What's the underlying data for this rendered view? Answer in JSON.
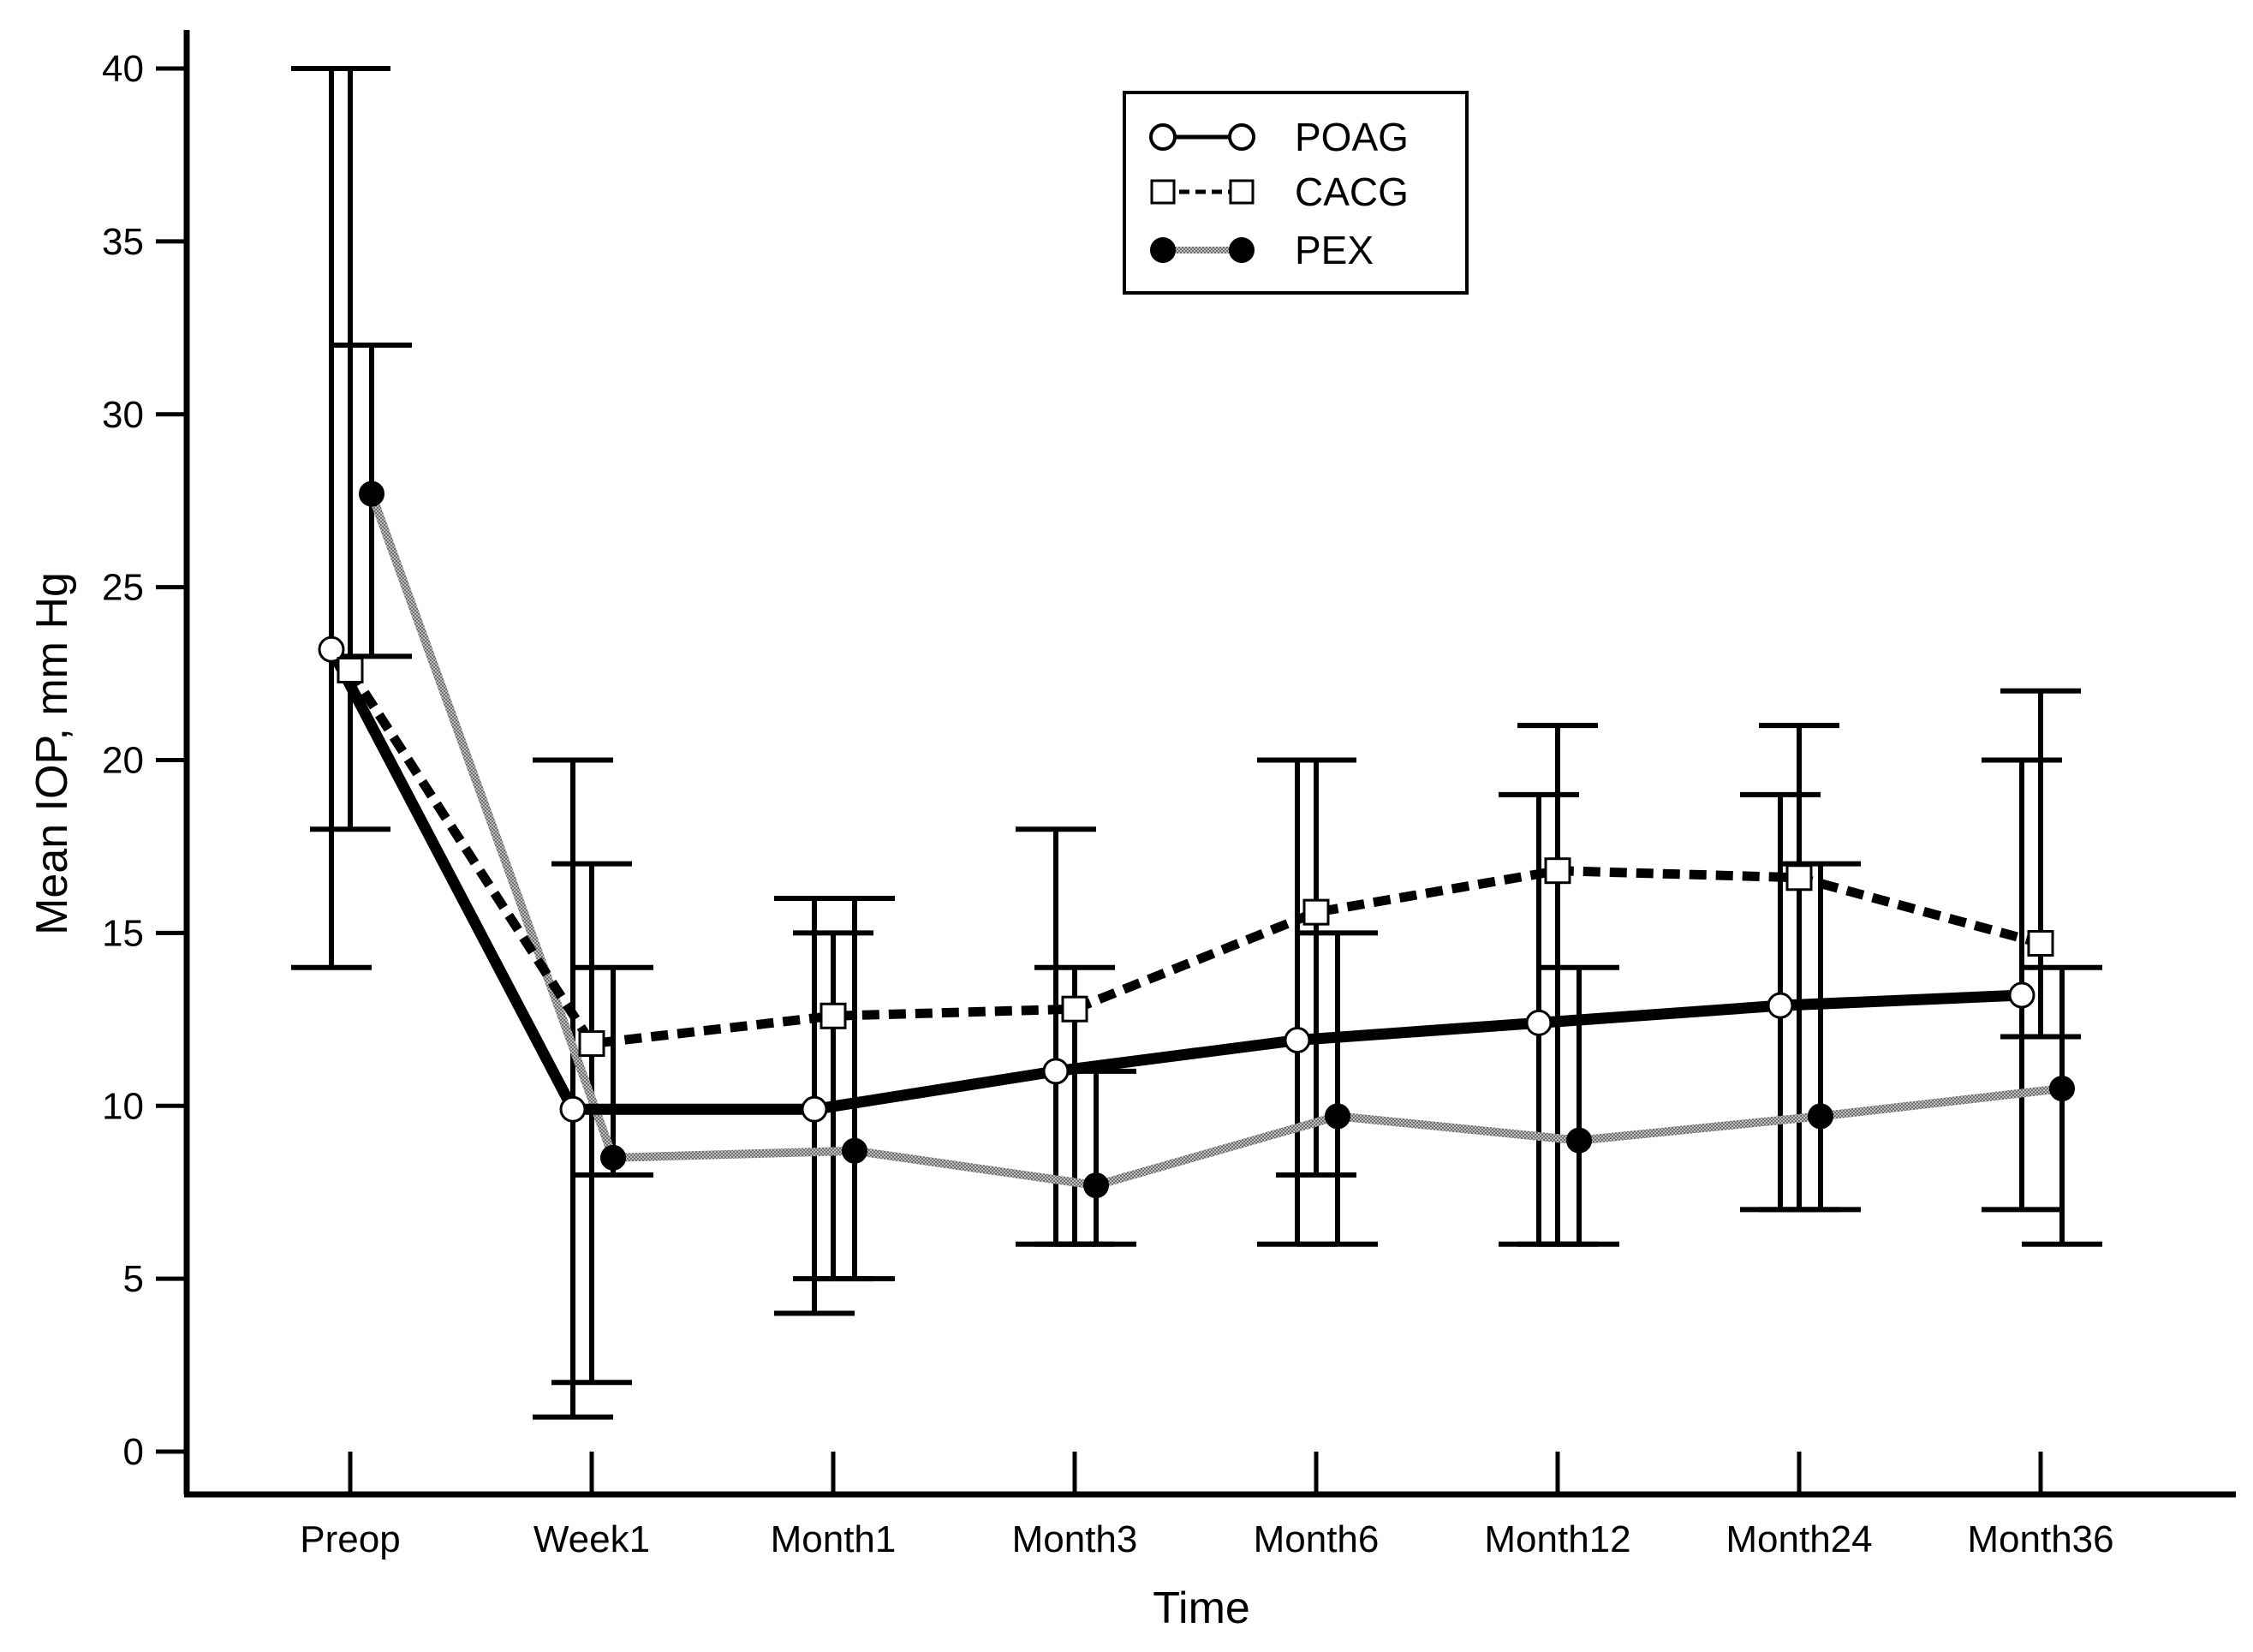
{
  "chart_data": {
    "type": "line",
    "title": "",
    "xlabel": "Time",
    "ylabel": "Mean IOP, mm Hg",
    "categories": [
      "Preop",
      "Week1",
      "Month1",
      "Month3",
      "Month6",
      "Month12",
      "Month24",
      "Month36"
    ],
    "ylim": [
      0,
      40
    ],
    "yticks": [
      0,
      5,
      10,
      15,
      20,
      25,
      30,
      35,
      40
    ],
    "ytick_labels": [
      "0",
      "5",
      "10",
      "15",
      "20",
      "25",
      "30",
      "35",
      "40"
    ],
    "grid": false,
    "legend_position": "top-center",
    "series": [
      {
        "name": "POAG",
        "marker": "open-circle",
        "line_style": "solid-thick",
        "color": "#000000",
        "values": [
          23.2,
          9.9,
          9.9,
          11.0,
          11.9,
          12.4,
          12.9,
          13.2
        ],
        "error_low": [
          14,
          1,
          4,
          6,
          6,
          6,
          7,
          7
        ],
        "error_high": [
          40,
          20,
          16,
          18,
          20,
          19,
          19,
          20
        ]
      },
      {
        "name": "CACG",
        "marker": "open-square",
        "line_style": "dashed-thick",
        "color": "#000000",
        "values": [
          22.6,
          11.8,
          12.6,
          12.8,
          15.6,
          16.8,
          16.6,
          14.7
        ],
        "error_low": [
          18,
          2,
          5,
          6,
          8,
          6,
          7,
          12
        ],
        "error_high": [
          40,
          17,
          15,
          14,
          20,
          21,
          21,
          22
        ]
      },
      {
        "name": "PEX",
        "marker": "filled-circle",
        "line_style": "gray-hatched",
        "color": "#8c8c8c",
        "values": [
          27.7,
          8.5,
          8.7,
          7.7,
          9.7,
          9.0,
          9.7,
          10.5
        ],
        "error_low": [
          23,
          8,
          5,
          6,
          6,
          6,
          7,
          6
        ],
        "error_high": [
          32,
          14,
          16,
          11,
          15,
          14,
          17,
          14
        ]
      }
    ]
  }
}
